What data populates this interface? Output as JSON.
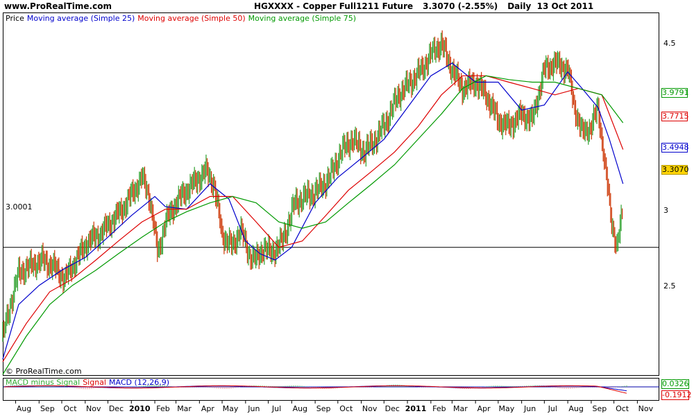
{
  "header": {
    "site": "www.ProRealTime.com",
    "symbol": "HGXXXX - Copper Full1211 Future",
    "quote": "3.3070 (-2.55%)",
    "period": "Daily  13 Oct 2011"
  },
  "legend": {
    "price": "Price",
    "ma25": "Moving average (Simple 25)",
    "ma50": "Moving average (Simple 50)",
    "ma75": "Moving average (Simple 75)"
  },
  "copyright": "© ProRealTime.com",
  "hline_label": "3.0001",
  "macd_legend": {
    "macd_minus_signal": "MACD minus Signal",
    "signal": "Signal",
    "macd": "MACD (12,26,9)"
  },
  "colors": {
    "price_up": "#2ca02c",
    "price_down": "#cc3300",
    "ma25": "#0000cc",
    "ma50": "#dd0000",
    "ma75": "#009900",
    "current_price_bg": "#ffd400"
  },
  "y_ticks": [
    "4.5",
    "3",
    "2.5"
  ],
  "price_boxes": [
    {
      "label": "3.9791",
      "color": "#009900",
      "bg": "#ffffff"
    },
    {
      "label": "3.7715",
      "color": "#dd0000",
      "bg": "#ffffff"
    },
    {
      "label": "3.4948",
      "color": "#0000cc",
      "bg": "#ffffff"
    },
    {
      "label": "3.3070",
      "color": "#000000",
      "bg": "#ffd400"
    }
  ],
  "macd_boxes": [
    {
      "label": "0.0326",
      "color": "#009900"
    },
    {
      "label": "-0.1912",
      "color": "#dd0000"
    }
  ],
  "chart_data": {
    "type": "line",
    "title": "HGXXXX - Copper Full1211 Future",
    "ylim": [
      2.0,
      4.75
    ],
    "hline": 3.0001,
    "x_ticks": [
      {
        "label": "Aug",
        "date": "2009-08"
      },
      {
        "label": "Sep",
        "date": "2009-09"
      },
      {
        "label": "Oct",
        "date": "2009-10"
      },
      {
        "label": "Nov",
        "date": "2009-11"
      },
      {
        "label": "Dec",
        "date": "2009-12"
      },
      {
        "label": "2010",
        "date": "2010-01",
        "bold": true
      },
      {
        "label": "Feb",
        "date": "2010-02"
      },
      {
        "label": "Mar",
        "date": "2010-03"
      },
      {
        "label": "Apr",
        "date": "2010-04"
      },
      {
        "label": "May",
        "date": "2010-05"
      },
      {
        "label": "Jun",
        "date": "2010-06"
      },
      {
        "label": "Jul",
        "date": "2010-07"
      },
      {
        "label": "Aug",
        "date": "2010-08"
      },
      {
        "label": "Sep",
        "date": "2010-09"
      },
      {
        "label": "Oct",
        "date": "2010-10"
      },
      {
        "label": "Nov",
        "date": "2010-11"
      },
      {
        "label": "Dec",
        "date": "2010-12"
      },
      {
        "label": "2011",
        "date": "2011-01",
        "bold": true
      },
      {
        "label": "Feb",
        "date": "2011-02"
      },
      {
        "label": "Mar",
        "date": "2011-03"
      },
      {
        "label": "Apr",
        "date": "2011-04"
      },
      {
        "label": "May",
        "date": "2011-05"
      },
      {
        "label": "Jun",
        "date": "2011-06"
      },
      {
        "label": "Jul",
        "date": "2011-07"
      },
      {
        "label": "Aug",
        "date": "2011-08"
      },
      {
        "label": "Sep",
        "date": "2011-09"
      },
      {
        "label": "Oct",
        "date": "2011-10"
      },
      {
        "label": "Nov",
        "date": "2011-11"
      }
    ],
    "series": [
      {
        "name": "Price",
        "color": "#2ca02c",
        "x": [
          "2009-07-15",
          "2009-07-25",
          "2009-08-05",
          "2009-08-20",
          "2009-09-05",
          "2009-09-20",
          "2009-10-05",
          "2009-10-20",
          "2009-11-05",
          "2009-11-20",
          "2009-12-05",
          "2009-12-20",
          "2010-01-05",
          "2010-01-15",
          "2010-01-25",
          "2010-02-05",
          "2010-02-15",
          "2010-03-01",
          "2010-03-15",
          "2010-04-01",
          "2010-04-10",
          "2010-04-20",
          "2010-05-01",
          "2010-05-15",
          "2010-05-25",
          "2010-06-05",
          "2010-06-15",
          "2010-06-25",
          "2010-07-05",
          "2010-07-20",
          "2010-08-05",
          "2010-08-20",
          "2010-09-05",
          "2010-09-20",
          "2010-10-05",
          "2010-10-20",
          "2010-11-05",
          "2010-11-20",
          "2010-12-05",
          "2010-12-20",
          "2011-01-05",
          "2011-01-20",
          "2011-02-05",
          "2011-02-15",
          "2011-03-01",
          "2011-03-15",
          "2011-04-01",
          "2011-04-15",
          "2011-05-01",
          "2011-05-15",
          "2011-06-01",
          "2011-06-15",
          "2011-07-01",
          "2011-07-15",
          "2011-08-01",
          "2011-08-10",
          "2011-08-20",
          "2011-09-01",
          "2011-09-10",
          "2011-09-20",
          "2011-09-28",
          "2011-10-05",
          "2011-10-13"
        ],
        "values": [
          2.3,
          2.55,
          2.8,
          2.85,
          2.9,
          2.85,
          2.75,
          2.9,
          3.05,
          3.1,
          3.2,
          3.3,
          3.45,
          3.55,
          3.4,
          2.95,
          3.2,
          3.35,
          3.45,
          3.55,
          3.6,
          3.5,
          3.1,
          3.0,
          3.15,
          2.95,
          2.9,
          3.0,
          2.95,
          3.05,
          3.35,
          3.4,
          3.45,
          3.55,
          3.75,
          3.85,
          3.75,
          3.85,
          4.0,
          4.2,
          4.3,
          4.4,
          4.55,
          4.6,
          4.4,
          4.25,
          4.3,
          4.2,
          4.0,
          3.95,
          4.05,
          4.0,
          4.4,
          4.45,
          4.4,
          4.1,
          3.9,
          3.95,
          4.1,
          3.6,
          3.2,
          3.0,
          3.3
        ]
      },
      {
        "name": "Moving average (Simple 25)",
        "color": "#0000cc",
        "x": [
          "2009-07-15",
          "2009-08-05",
          "2009-09-01",
          "2009-10-01",
          "2009-11-01",
          "2009-12-01",
          "2010-01-01",
          "2010-02-01",
          "2010-02-15",
          "2010-03-15",
          "2010-04-15",
          "2010-05-10",
          "2010-06-01",
          "2010-06-20",
          "2010-07-10",
          "2010-08-01",
          "2010-09-01",
          "2010-10-01",
          "2010-11-01",
          "2010-12-01",
          "2011-01-01",
          "2011-02-01",
          "2011-03-01",
          "2011-04-01",
          "2011-05-01",
          "2011-06-01",
          "2011-07-01",
          "2011-08-01",
          "2011-08-20",
          "2011-09-10",
          "2011-09-25",
          "2011-10-13"
        ],
        "values": [
          2.12,
          2.55,
          2.7,
          2.82,
          2.92,
          3.08,
          3.25,
          3.4,
          3.32,
          3.3,
          3.5,
          3.38,
          3.05,
          2.95,
          2.9,
          3.0,
          3.35,
          3.55,
          3.7,
          3.85,
          4.1,
          4.35,
          4.45,
          4.3,
          4.3,
          4.08,
          4.12,
          4.38,
          4.25,
          4.1,
          3.85,
          3.5
        ]
      },
      {
        "name": "Moving average (Simple 50)",
        "color": "#dd0000",
        "x": [
          "2009-07-15",
          "2009-08-15",
          "2009-09-15",
          "2009-10-15",
          "2009-11-15",
          "2009-12-15",
          "2010-01-15",
          "2010-02-15",
          "2010-03-15",
          "2010-04-15",
          "2010-05-15",
          "2010-06-15",
          "2010-07-15",
          "2010-08-15",
          "2010-09-15",
          "2010-10-15",
          "2010-11-15",
          "2010-12-15",
          "2011-01-15",
          "2011-02-15",
          "2011-03-15",
          "2011-04-15",
          "2011-05-15",
          "2011-06-15",
          "2011-07-15",
          "2011-08-15",
          "2011-09-15",
          "2011-10-13"
        ],
        "values": [
          2.1,
          2.4,
          2.65,
          2.75,
          2.9,
          3.05,
          3.2,
          3.3,
          3.3,
          3.4,
          3.4,
          3.2,
          3.0,
          3.05,
          3.25,
          3.45,
          3.6,
          3.75,
          3.95,
          4.2,
          4.35,
          4.35,
          4.3,
          4.25,
          4.2,
          4.25,
          4.2,
          3.77
        ]
      },
      {
        "name": "Moving average (Simple 75)",
        "color": "#009900",
        "x": [
          "2009-07-15",
          "2009-08-15",
          "2009-09-15",
          "2009-10-15",
          "2009-11-15",
          "2009-12-15",
          "2010-01-15",
          "2010-02-15",
          "2010-03-15",
          "2010-04-15",
          "2010-05-15",
          "2010-06-15",
          "2010-07-15",
          "2010-08-15",
          "2010-09-15",
          "2010-10-15",
          "2010-11-15",
          "2010-12-15",
          "2011-01-15",
          "2011-02-15",
          "2011-03-15",
          "2011-04-15",
          "2011-05-15",
          "2011-06-15",
          "2011-07-15",
          "2011-08-15",
          "2011-09-15",
          "2011-10-13"
        ],
        "values": [
          2.0,
          2.3,
          2.55,
          2.7,
          2.82,
          2.95,
          3.08,
          3.2,
          3.28,
          3.35,
          3.4,
          3.35,
          3.2,
          3.15,
          3.2,
          3.35,
          3.5,
          3.65,
          3.85,
          4.05,
          4.25,
          4.35,
          4.32,
          4.3,
          4.3,
          4.25,
          4.2,
          3.98
        ]
      }
    ]
  }
}
